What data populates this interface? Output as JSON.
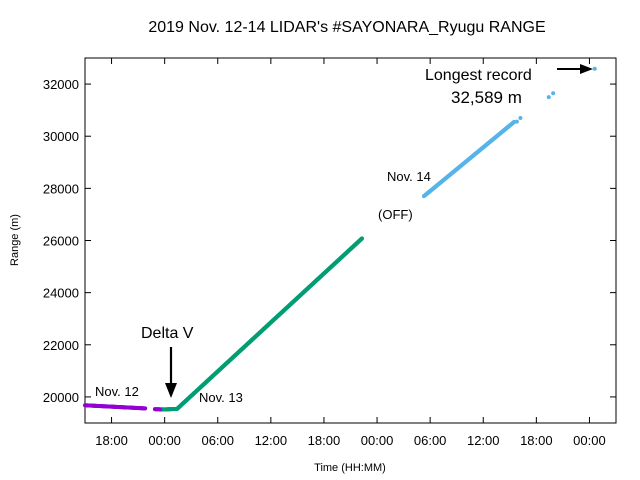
{
  "chart_data": {
    "type": "scatter",
    "title": "2019 Nov. 12-14 LIDAR's  #SAYONARA_Ryugu  RANGE",
    "xlabel": "Time (HH:MM)",
    "ylabel": "Range (m)",
    "x_unit": "hours",
    "xlim": [
      15,
      75
    ],
    "ylim": [
      19000,
      33000
    ],
    "x_ticks": [
      {
        "value": 18,
        "label": "18:00"
      },
      {
        "value": 24,
        "label": "00:00"
      },
      {
        "value": 30,
        "label": "06:00"
      },
      {
        "value": 36,
        "label": "12:00"
      },
      {
        "value": 42,
        "label": "18:00"
      },
      {
        "value": 48,
        "label": "00:00"
      },
      {
        "value": 54,
        "label": "06:00"
      },
      {
        "value": 60,
        "label": "12:00"
      },
      {
        "value": 66,
        "label": "18:00"
      },
      {
        "value": 72,
        "label": "00:00"
      }
    ],
    "y_ticks": [
      {
        "value": 20000,
        "label": "20000"
      },
      {
        "value": 22000,
        "label": "22000"
      },
      {
        "value": 24000,
        "label": "24000"
      },
      {
        "value": 26000,
        "label": "26000"
      },
      {
        "value": 28000,
        "label": "28000"
      },
      {
        "value": 30000,
        "label": "30000"
      },
      {
        "value": 32000,
        "label": "32000"
      }
    ],
    "grid": false,
    "legend": "none",
    "series": [
      {
        "color": "#9400d3",
        "segments": [
          {
            "x0": 15.0,
            "y0": 19680,
            "x1": 21.8,
            "y1": 19560,
            "step": 0.06
          },
          {
            "x0": 22.9,
            "y0": 19530,
            "x1": 23.9,
            "y1": 19520,
            "step": 0.06
          }
        ]
      },
      {
        "color": "#009e73",
        "segments": [
          {
            "x0": 23.9,
            "y0": 19520,
            "x1": 25.4,
            "y1": 19540,
            "step": 0.05
          },
          {
            "x0": 25.4,
            "y0": 19540,
            "x1": 46.3,
            "y1": 26080,
            "step": 0.05
          }
        ]
      },
      {
        "color": "#56b4e9",
        "segments": [
          {
            "x0": 53.3,
            "y0": 27700,
            "x1": 63.5,
            "y1": 30550,
            "step": 0.06
          }
        ],
        "extra_points": [
          [
            63.8,
            30560
          ],
          [
            64.2,
            30700
          ],
          [
            67.4,
            31500
          ],
          [
            67.9,
            31650
          ],
          [
            72.6,
            32589
          ]
        ]
      }
    ],
    "annotations": {
      "nov12": "Nov. 12",
      "nov13": "Nov. 13",
      "nov14": "Nov. 14",
      "off": "(OFF)",
      "delta_v": "Delta V",
      "longest_record": "Longest record",
      "record_value": "32,589 m"
    }
  }
}
